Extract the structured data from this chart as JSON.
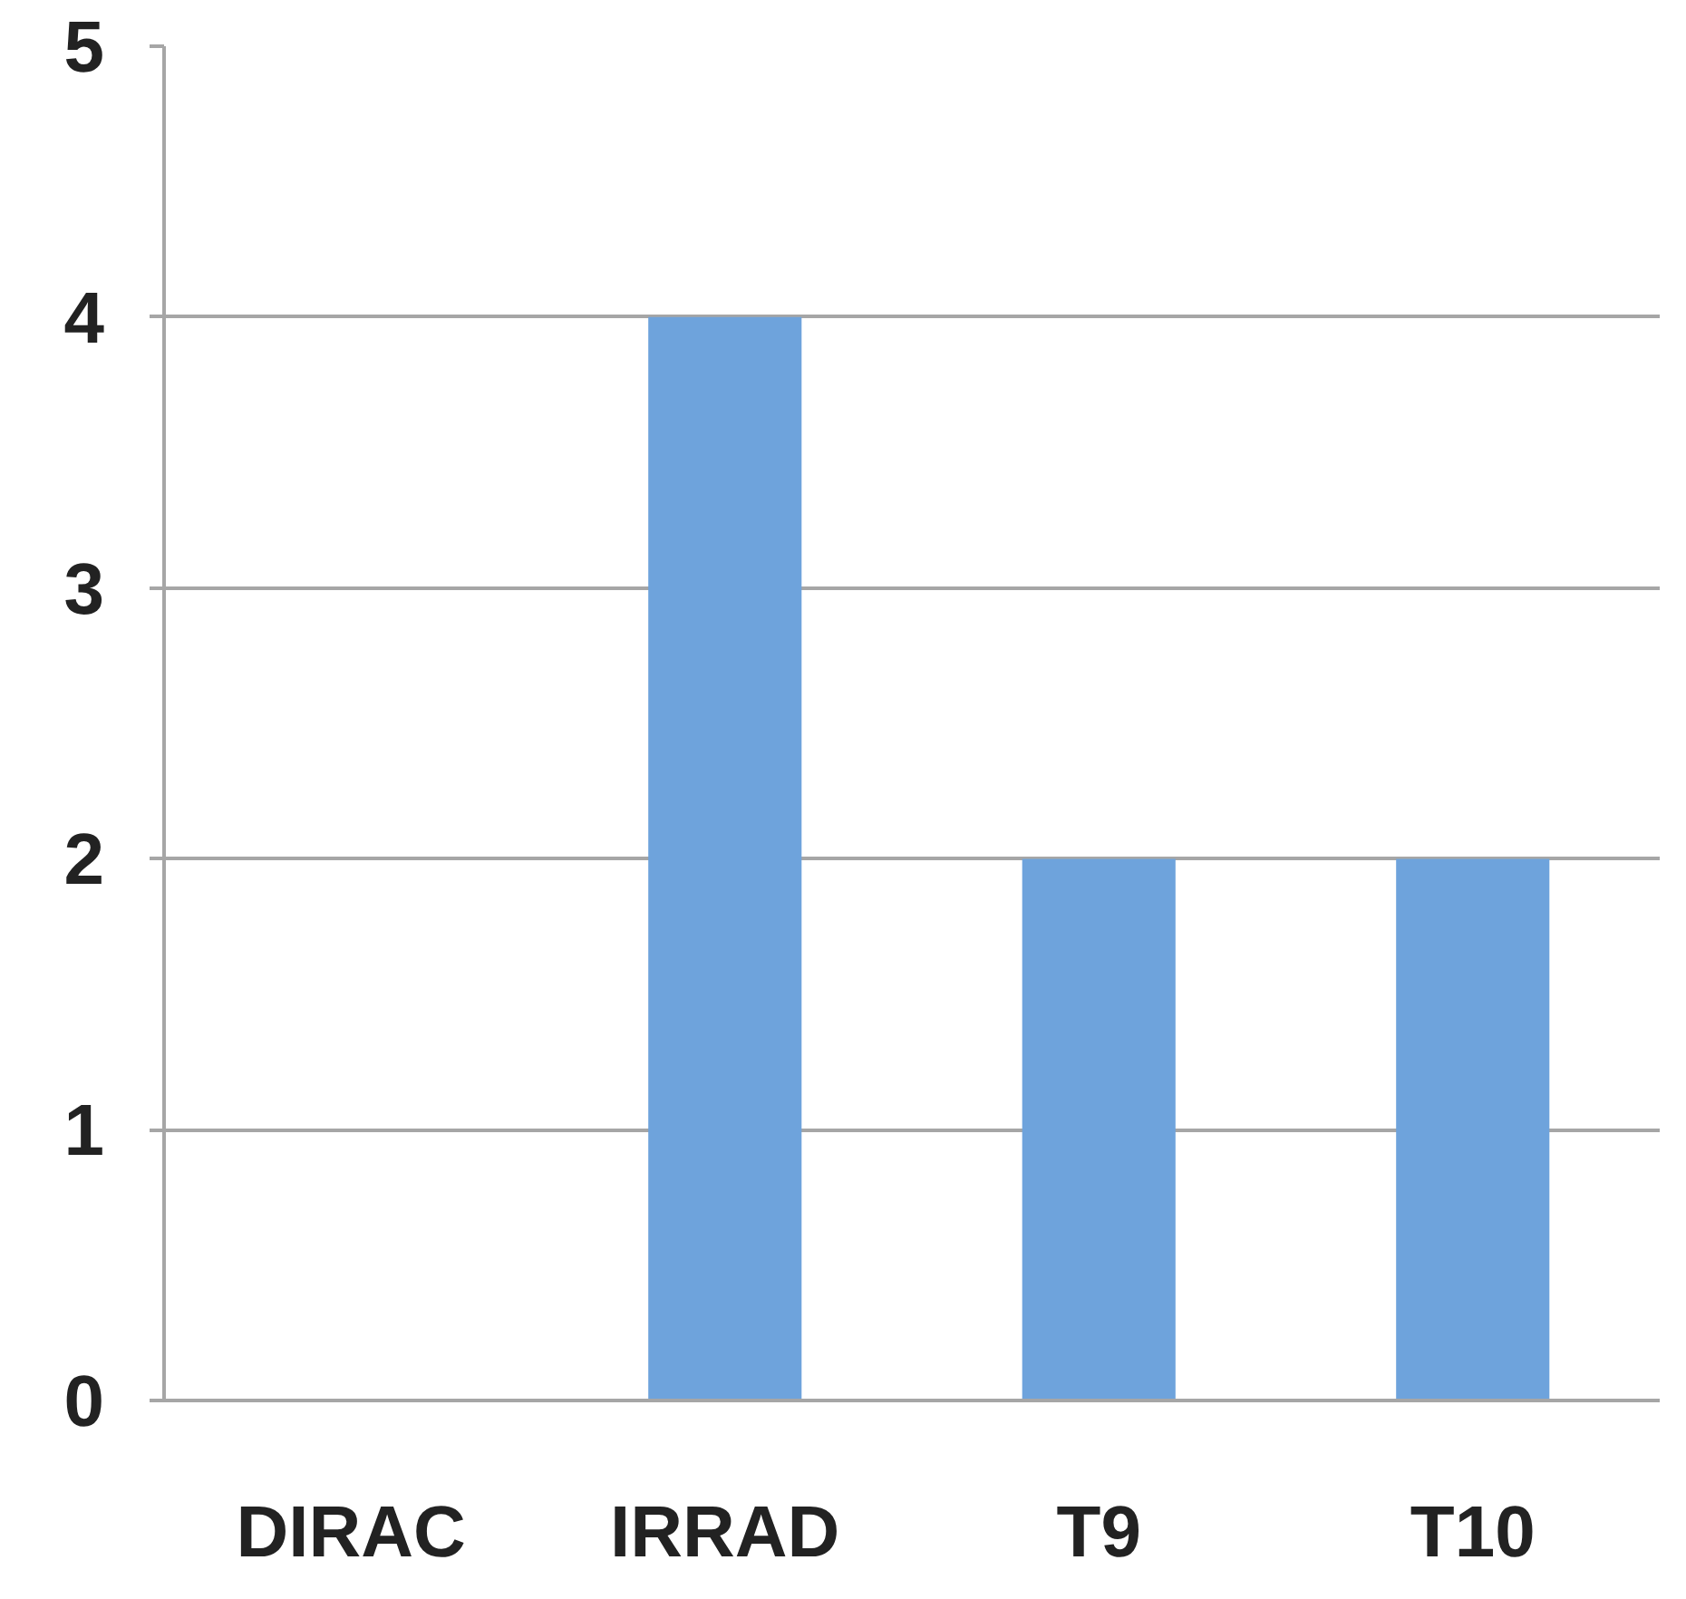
{
  "chart_data": {
    "type": "bar",
    "categories": [
      "DIRAC",
      "IRRAD",
      "T9",
      "T10"
    ],
    "values": [
      0,
      4,
      2,
      2
    ],
    "color": "#6ea3dc",
    "ylim": [
      0,
      5
    ],
    "yticks": [
      0,
      1,
      2,
      3,
      4,
      5
    ],
    "grid": "y"
  }
}
